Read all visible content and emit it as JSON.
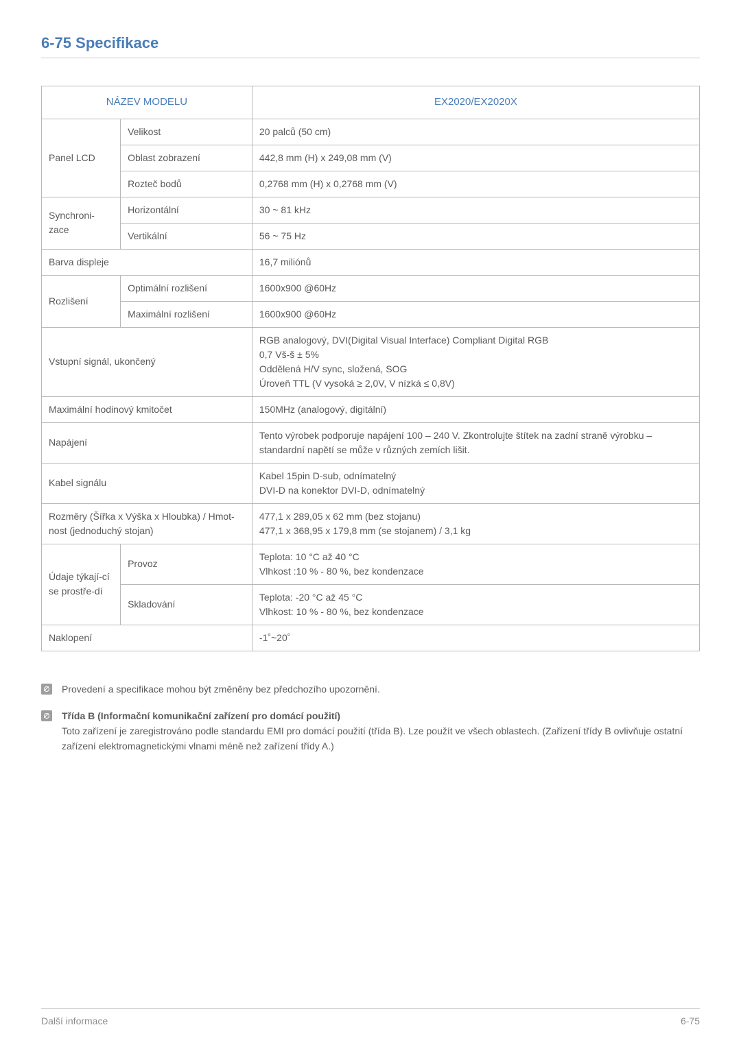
{
  "title": "6-75   Specifikace",
  "table": {
    "header_left": "NÁZEV MODELU",
    "header_right": "EX2020/EX2020X",
    "rows": {
      "panel_lcd": "Panel LCD",
      "size_label": "Velikost",
      "size_value": "20 palců (50 cm)",
      "area_label": "Oblast zobrazení",
      "area_value": "442,8 mm (H) x 249,08 mm (V)",
      "pitch_label": "Rozteč bodů",
      "pitch_value": "0,2768 mm (H) x 0,2768 mm (V)",
      "sync": "Synchroni-zace",
      "h_label": "Horizontální",
      "h_value": "30 ~ 81 kHz",
      "v_label": "Vertikální",
      "v_value": "56 ~ 75 Hz",
      "color_label": "Barva displeje",
      "color_value": "16,7 miliónů",
      "res": "Rozlišení",
      "opt_label": "Optimální rozlišení",
      "opt_value": "1600x900 @60Hz",
      "max_label": "Maximální rozlišení",
      "max_value": "1600x900 @60Hz",
      "input_label": "Vstupní signál, ukončený",
      "input_value": "RGB analogový, DVI(Digital Visual Interface) Compliant Digital RGB\n0,7 Vš-š ± 5%\nOddělená H/V sync, složená, SOG\nÚroveň TTL (V vysoká ≥ 2,0V, V nízká ≤ 0,8V)",
      "clock_label": "Maximální hodinový kmitočet",
      "clock_value": "150MHz (analogový, digitální)",
      "power_label": "Napájení",
      "power_value": "Tento výrobek podporuje napájení 100 – 240 V. Zkontrolujte štítek na zadní straně výrobku – standardní napětí se může v různých zemích lišit.",
      "cable_label": "Kabel signálu",
      "cable_value": "Kabel 15pin D-sub, odnímatelný\nDVI-D na konektor DVI-D, odnímatelný",
      "dim_label": "Rozměry (Šířka x Výška x Hloubka) / Hmot-nost (jednoduchý stojan)",
      "dim_value": "477,1 x 289,05 x 62 mm (bez stojanu)\n477,1 x 368,95 x 179,8 mm (se stojanem) / 3,1 kg",
      "env": "Údaje týkají-cí se prostře-dí",
      "op_label": "Provoz",
      "op_value": "Teplota: 10 °C až 40 °C\nVlhkost :10 % - 80 %, bez kondenzace",
      "st_label": "Skladování",
      "st_value": "Teplota: -20 °C až 45 °C\nVlhkost: 10 % - 80 %, bez kondenzace",
      "tilt_label": "Naklopení",
      "tilt_value": "-1˚~20˚"
    }
  },
  "notes": {
    "n1": "Provedení a specifikace mohou být změněny bez předchozího upozornění.",
    "n2_title": "Třída B (Informační komunikační zařízení pro domácí použití)",
    "n2_body": "Toto zařízení je zaregistrováno podle standardu EMI pro domácí použití (třída B). Lze použít ve všech oblastech. (Zařízení třídy B ovlivňuje ostatní zařízení elektromagnetickými vlnami méně než zařízení třídy A.)"
  },
  "footer": {
    "left": "Další informace",
    "right": "6-75"
  }
}
